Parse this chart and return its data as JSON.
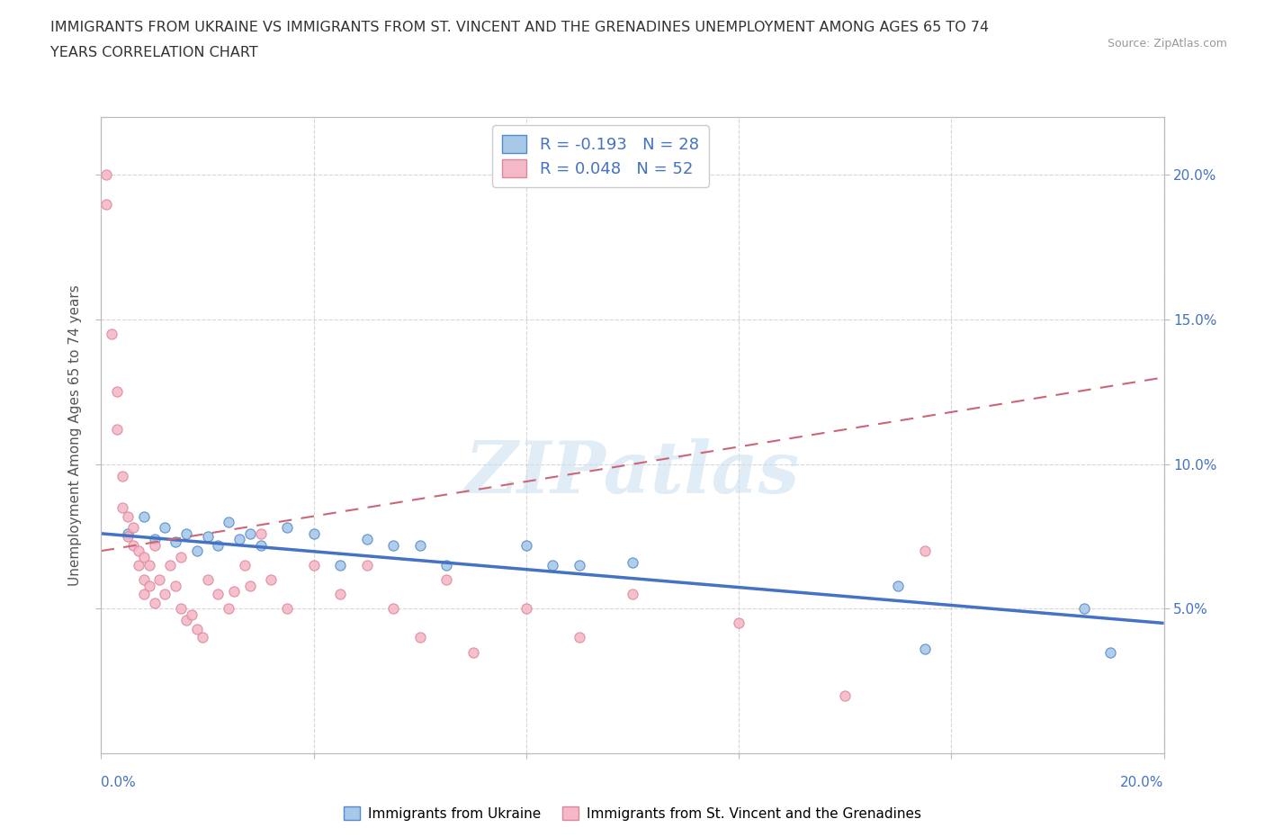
{
  "title_line1": "IMMIGRANTS FROM UKRAINE VS IMMIGRANTS FROM ST. VINCENT AND THE GRENADINES UNEMPLOYMENT AMONG AGES 65 TO 74",
  "title_line2": "YEARS CORRELATION CHART",
  "source": "Source: ZipAtlas.com",
  "ylabel": "Unemployment Among Ages 65 to 74 years",
  "legend_ukraine": "Immigrants from Ukraine",
  "legend_svg": "Immigrants from St. Vincent and the Grenadines",
  "R_ukraine": -0.193,
  "N_ukraine": 28,
  "R_svg": 0.048,
  "N_svg": 52,
  "ukraine_color": "#a8c8e8",
  "ukraine_edge_color": "#5588cc",
  "ukraine_line_color": "#4472c4",
  "svg_color": "#f4b8c8",
  "svg_edge_color": "#dd8899",
  "svg_line_color": "#cc6677",
  "watermark_text": "ZIPatlas",
  "ukraine_points": [
    [
      0.005,
      0.076
    ],
    [
      0.008,
      0.082
    ],
    [
      0.01,
      0.074
    ],
    [
      0.012,
      0.078
    ],
    [
      0.014,
      0.073
    ],
    [
      0.016,
      0.076
    ],
    [
      0.018,
      0.07
    ],
    [
      0.02,
      0.075
    ],
    [
      0.022,
      0.072
    ],
    [
      0.024,
      0.08
    ],
    [
      0.026,
      0.074
    ],
    [
      0.028,
      0.076
    ],
    [
      0.03,
      0.072
    ],
    [
      0.035,
      0.078
    ],
    [
      0.04,
      0.076
    ],
    [
      0.045,
      0.065
    ],
    [
      0.05,
      0.074
    ],
    [
      0.055,
      0.072
    ],
    [
      0.06,
      0.072
    ],
    [
      0.065,
      0.065
    ],
    [
      0.08,
      0.072
    ],
    [
      0.085,
      0.065
    ],
    [
      0.09,
      0.065
    ],
    [
      0.1,
      0.066
    ],
    [
      0.15,
      0.058
    ],
    [
      0.155,
      0.036
    ],
    [
      0.185,
      0.05
    ],
    [
      0.19,
      0.035
    ]
  ],
  "svg_points": [
    [
      0.001,
      0.2
    ],
    [
      0.001,
      0.19
    ],
    [
      0.002,
      0.145
    ],
    [
      0.003,
      0.125
    ],
    [
      0.003,
      0.112
    ],
    [
      0.004,
      0.096
    ],
    [
      0.004,
      0.085
    ],
    [
      0.005,
      0.082
    ],
    [
      0.005,
      0.075
    ],
    [
      0.006,
      0.078
    ],
    [
      0.006,
      0.072
    ],
    [
      0.007,
      0.07
    ],
    [
      0.007,
      0.065
    ],
    [
      0.008,
      0.068
    ],
    [
      0.008,
      0.06
    ],
    [
      0.008,
      0.055
    ],
    [
      0.009,
      0.065
    ],
    [
      0.009,
      0.058
    ],
    [
      0.01,
      0.072
    ],
    [
      0.01,
      0.052
    ],
    [
      0.011,
      0.06
    ],
    [
      0.012,
      0.055
    ],
    [
      0.013,
      0.065
    ],
    [
      0.014,
      0.058
    ],
    [
      0.015,
      0.068
    ],
    [
      0.015,
      0.05
    ],
    [
      0.016,
      0.046
    ],
    [
      0.017,
      0.048
    ],
    [
      0.018,
      0.043
    ],
    [
      0.019,
      0.04
    ],
    [
      0.02,
      0.06
    ],
    [
      0.022,
      0.055
    ],
    [
      0.024,
      0.05
    ],
    [
      0.025,
      0.056
    ],
    [
      0.027,
      0.065
    ],
    [
      0.028,
      0.058
    ],
    [
      0.03,
      0.076
    ],
    [
      0.032,
      0.06
    ],
    [
      0.035,
      0.05
    ],
    [
      0.04,
      0.065
    ],
    [
      0.045,
      0.055
    ],
    [
      0.05,
      0.065
    ],
    [
      0.055,
      0.05
    ],
    [
      0.06,
      0.04
    ],
    [
      0.065,
      0.06
    ],
    [
      0.07,
      0.035
    ],
    [
      0.08,
      0.05
    ],
    [
      0.09,
      0.04
    ],
    [
      0.1,
      0.055
    ],
    [
      0.12,
      0.045
    ],
    [
      0.14,
      0.02
    ],
    [
      0.155,
      0.07
    ]
  ],
  "xlim": [
    0.0,
    0.2
  ],
  "ylim": [
    0.0,
    0.22
  ],
  "yticks": [
    0.05,
    0.1,
    0.15,
    0.2
  ],
  "ytick_labels": [
    "5.0%",
    "10.0%",
    "15.0%",
    "20.0%"
  ],
  "xtick_positions": [
    0.0,
    0.04,
    0.08,
    0.12,
    0.16,
    0.2
  ],
  "background_color": "#ffffff",
  "grid_color": "#cccccc",
  "label_color": "#4472c4"
}
